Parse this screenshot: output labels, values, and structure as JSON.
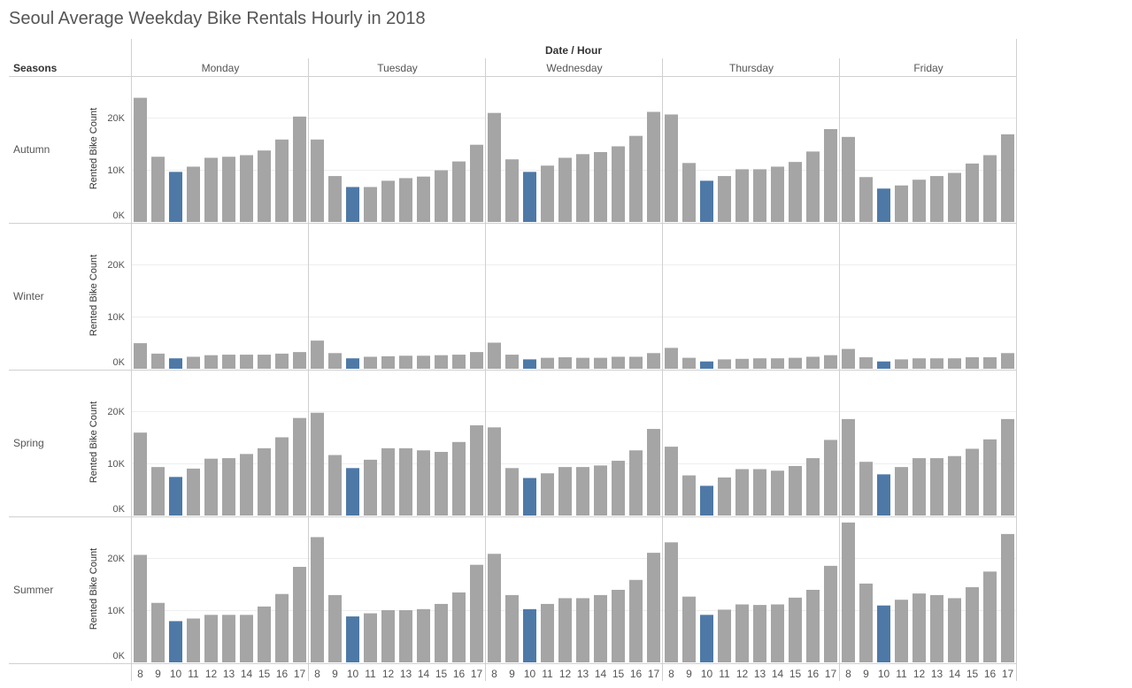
{
  "title": "Seoul Average Weekday Bike Rentals Hourly in 2018",
  "colors": {
    "bar": "#a5a5a5",
    "highlight": "#4e79a7",
    "gridline": "#eeeeee",
    "divider": "#d0d0d0",
    "text": "#555555"
  },
  "chart_data": {
    "type": "bar",
    "title": "Seoul Average Weekday Bike Rentals Hourly in 2018",
    "column_header": "Date / Hour",
    "row_header": "Seasons",
    "ylabel": "Rented Bike Count",
    "ylim": [
      0,
      28000
    ],
    "y_ticks": [
      0,
      10000,
      20000
    ],
    "y_tick_labels": [
      "0K",
      "10K",
      "20K"
    ],
    "grid": true,
    "highlight_hour": "10",
    "days": [
      "Monday",
      "Tuesday",
      "Wednesday",
      "Thursday",
      "Friday"
    ],
    "hours": [
      "8",
      "9",
      "10",
      "11",
      "12",
      "13",
      "14",
      "15",
      "16",
      "17"
    ],
    "seasons": [
      {
        "name": "Autumn",
        "values": [
          [
            23800,
            12500,
            9600,
            10600,
            12300,
            12500,
            12800,
            13700,
            15800,
            20200
          ],
          [
            15800,
            8800,
            6700,
            6700,
            7900,
            8400,
            8700,
            9900,
            11600,
            14800
          ],
          [
            20900,
            12000,
            9600,
            10800,
            12300,
            13000,
            13400,
            14500,
            16500,
            21100
          ],
          [
            20600,
            11300,
            7900,
            8800,
            10100,
            10100,
            10600,
            11500,
            13500,
            17800
          ],
          [
            16300,
            8600,
            6400,
            7000,
            8100,
            8800,
            9400,
            11200,
            12800,
            16800
          ]
        ]
      },
      {
        "name": "Winter",
        "values": [
          [
            4900,
            2900,
            2000,
            2300,
            2600,
            2700,
            2700,
            2700,
            2900,
            3200
          ],
          [
            5400,
            3000,
            2000,
            2300,
            2400,
            2500,
            2500,
            2600,
            2700,
            3200
          ],
          [
            5000,
            2700,
            1800,
            2100,
            2200,
            2100,
            2100,
            2300,
            2300,
            3000
          ],
          [
            4000,
            2100,
            1400,
            1800,
            1900,
            2000,
            2000,
            2100,
            2300,
            2600
          ],
          [
            3800,
            2200,
            1400,
            1800,
            2000,
            2000,
            2000,
            2200,
            2200,
            3000
          ]
        ]
      },
      {
        "name": "Spring",
        "values": [
          [
            15900,
            9300,
            7400,
            9000,
            10900,
            11000,
            11800,
            12900,
            15000,
            18700
          ],
          [
            19700,
            11600,
            9100,
            10700,
            12900,
            12900,
            12500,
            12200,
            14100,
            17300
          ],
          [
            16900,
            9100,
            7200,
            8100,
            9300,
            9300,
            9600,
            10500,
            12500,
            16600
          ],
          [
            13200,
            7700,
            5700,
            7300,
            8900,
            8900,
            8600,
            9500,
            11000,
            14500
          ],
          [
            18500,
            10300,
            7900,
            9300,
            11000,
            11000,
            11400,
            12800,
            14600,
            18500
          ]
        ]
      },
      {
        "name": "Summer",
        "values": [
          [
            20600,
            11400,
            7900,
            8400,
            9100,
            9100,
            9100,
            10700,
            13100,
            18300
          ],
          [
            24000,
            12900,
            8800,
            9400,
            10000,
            10000,
            10200,
            11200,
            13400,
            18700
          ],
          [
            20800,
            12900,
            10200,
            11200,
            12300,
            12300,
            12900,
            13900,
            15800,
            21000
          ],
          [
            23000,
            12600,
            9100,
            10100,
            11100,
            11000,
            11100,
            12400,
            13900,
            18500
          ],
          [
            26800,
            15100,
            10900,
            12000,
            13200,
            12900,
            12300,
            14400,
            17400,
            24600
          ]
        ]
      }
    ]
  }
}
